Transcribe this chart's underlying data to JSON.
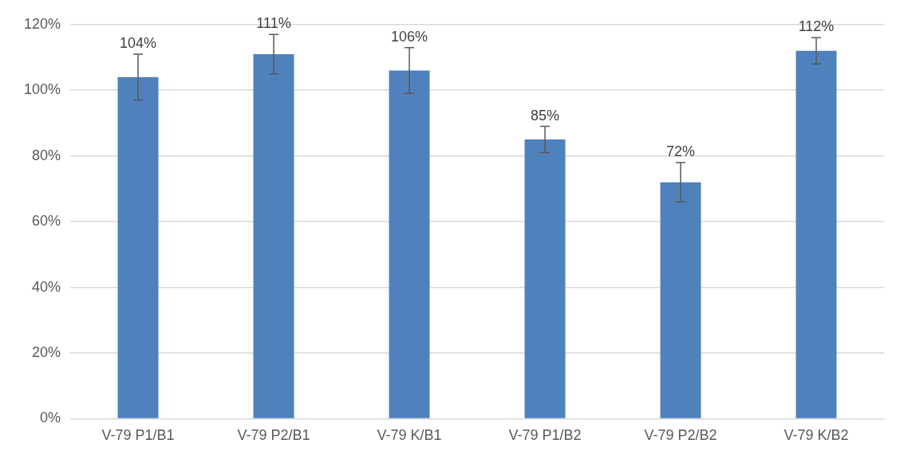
{
  "chart_data": {
    "type": "bar",
    "categories": [
      "V-79 P1/B1",
      "V-79 P2/B1",
      "V-79 K/B1",
      "V-79 P1/B2",
      "V-79 P2/B2",
      "V-79 K/B2"
    ],
    "values": [
      104,
      111,
      106,
      85,
      72,
      112
    ],
    "value_labels": [
      "104%",
      "111%",
      "106%",
      "85%",
      "72%",
      "112%"
    ],
    "errors": [
      7,
      6,
      7,
      4,
      6,
      4
    ],
    "color": "#4f81bd",
    "ylim": [
      0,
      120
    ],
    "yticks": [
      {
        "value": 0,
        "label": "0%"
      },
      {
        "value": 20,
        "label": "20%"
      },
      {
        "value": 40,
        "label": "40%"
      },
      {
        "value": 60,
        "label": "60%"
      },
      {
        "value": 80,
        "label": "80%"
      },
      {
        "value": 100,
        "label": "100%"
      },
      {
        "value": 120,
        "label": "120%"
      }
    ],
    "grid": "y",
    "legend": false
  }
}
